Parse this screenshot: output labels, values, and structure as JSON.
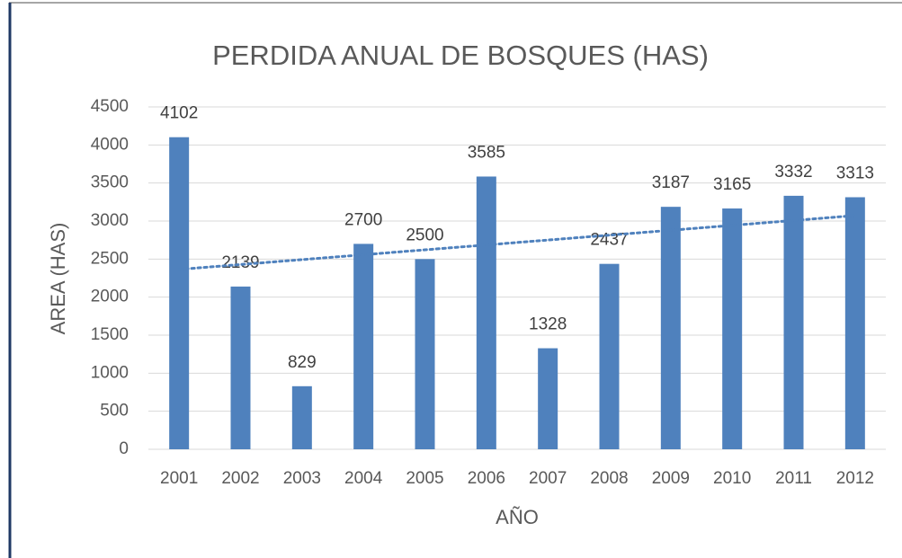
{
  "chart_data": {
    "type": "bar",
    "title": "PERDIDA ANUAL DE BOSQUES (HAS)",
    "x_label": "AÑO",
    "y_label": "AREA (HAS)",
    "categories": [
      "2001",
      "2002",
      "2003",
      "2004",
      "2005",
      "2006",
      "2007",
      "2008",
      "2009",
      "2010",
      "2011",
      "2012"
    ],
    "values": [
      4102,
      2139,
      829,
      2700,
      2500,
      3585,
      1328,
      2437,
      3187,
      3165,
      3332,
      3313
    ],
    "color": "#4f81bd",
    "ylim": [
      0,
      4500
    ],
    "yticks": [
      0,
      500,
      1000,
      1500,
      2000,
      2500,
      3000,
      3500,
      4000,
      4500
    ],
    "grid": true,
    "trendline": "linear",
    "trendline_color": "#4f81bd"
  }
}
